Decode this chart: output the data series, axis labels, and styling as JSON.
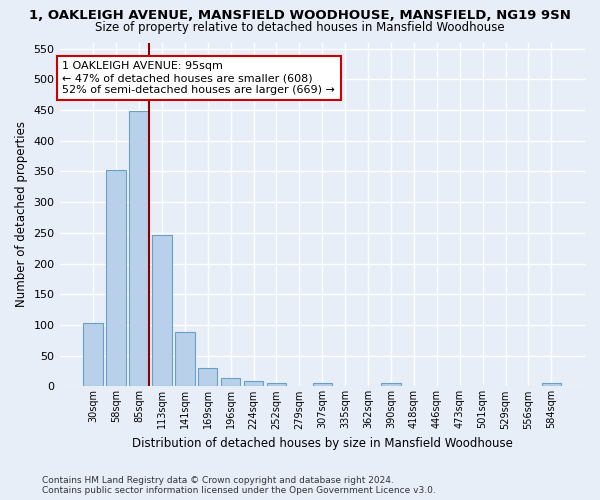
{
  "title_line1": "1, OAKLEIGH AVENUE, MANSFIELD WOODHOUSE, MANSFIELD, NG19 9SN",
  "title_line2": "Size of property relative to detached houses in Mansfield Woodhouse",
  "xlabel": "Distribution of detached houses by size in Mansfield Woodhouse",
  "ylabel": "Number of detached properties",
  "footnote": "Contains HM Land Registry data © Crown copyright and database right 2024.\nContains public sector information licensed under the Open Government Licence v3.0.",
  "bar_labels": [
    "30sqm",
    "58sqm",
    "85sqm",
    "113sqm",
    "141sqm",
    "169sqm",
    "196sqm",
    "224sqm",
    "252sqm",
    "279sqm",
    "307sqm",
    "335sqm",
    "362sqm",
    "390sqm",
    "418sqm",
    "446sqm",
    "473sqm",
    "501sqm",
    "529sqm",
    "556sqm",
    "584sqm"
  ],
  "bar_values": [
    103,
    353,
    449,
    246,
    88,
    30,
    13,
    9,
    6,
    0,
    5,
    0,
    0,
    5,
    0,
    0,
    0,
    0,
    0,
    0,
    5
  ],
  "bar_color": "#b8d0ea",
  "bar_edge_color": "#6a9fc8",
  "vline_color": "#8b0000",
  "annotation_text": "1 OAKLEIGH AVENUE: 95sqm\n← 47% of detached houses are smaller (608)\n52% of semi-detached houses are larger (669) →",
  "annotation_box_color": "white",
  "annotation_box_edge": "#cc0000",
  "ylim": [
    0,
    560
  ],
  "yticks": [
    0,
    50,
    100,
    150,
    200,
    250,
    300,
    350,
    400,
    450,
    500,
    550
  ],
  "bg_color": "#e8eef8",
  "plot_bg_color": "#e8eef8",
  "grid_color": "white",
  "title_fontsize": 9.5,
  "subtitle_fontsize": 8.5,
  "xlabel_fontsize": 8.5,
  "ylabel_fontsize": 8.5,
  "footnote_fontsize": 6.5
}
